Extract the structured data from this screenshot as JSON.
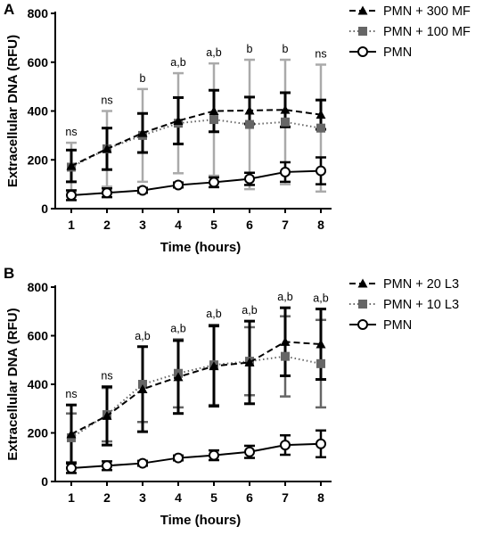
{
  "chart_data": [
    {
      "type": "line",
      "panel": "A",
      "xlabel": "Time (hours)",
      "ylabel": "Extracellular DNA  (RFU)",
      "categories": [
        "1",
        "2",
        "3",
        "4",
        "5",
        "6",
        "7",
        "8"
      ],
      "x": [
        1,
        2,
        3,
        4,
        5,
        6,
        7,
        8
      ],
      "ylim": [
        0,
        800
      ],
      "yticks": [
        "0",
        "200",
        "400",
        "600",
        "800"
      ],
      "grid": false,
      "legend_position": "right",
      "annotations": [
        "ns",
        "ns",
        "b",
        "a,b",
        "a,b",
        "b",
        "b",
        "ns"
      ],
      "series": [
        {
          "name": "PMN + 300 MF",
          "style": "dashed",
          "marker": "triangle",
          "color": "#000000",
          "values": [
            175,
            245,
            310,
            360,
            400,
            402,
            405,
            385
          ],
          "errors": [
            65,
            85,
            80,
            95,
            85,
            55,
            70,
            60
          ]
        },
        {
          "name": "PMN + 100 MF",
          "style": "dotted",
          "marker": "square",
          "color": "#666666",
          "error_color": "#aaaaaa",
          "values": [
            170,
            245,
            300,
            350,
            365,
            345,
            355,
            330
          ],
          "errors": [
            100,
            155,
            190,
            205,
            230,
            265,
            255,
            260
          ]
        },
        {
          "name": "PMN",
          "style": "solid",
          "marker": "circle-open",
          "color": "#000000",
          "values": [
            55,
            65,
            75,
            97,
            108,
            122,
            150,
            155
          ],
          "errors": [
            20,
            18,
            10,
            10,
            20,
            25,
            40,
            55
          ]
        }
      ]
    },
    {
      "type": "line",
      "panel": "B",
      "xlabel": "Time (hours)",
      "ylabel": "Extracellular DNA  (RFU)",
      "categories": [
        "1",
        "2",
        "3",
        "4",
        "5",
        "6",
        "7",
        "8"
      ],
      "x": [
        1,
        2,
        3,
        4,
        5,
        6,
        7,
        8
      ],
      "ylim": [
        0,
        800
      ],
      "yticks": [
        "0",
        "200",
        "400",
        "600",
        "800"
      ],
      "grid": false,
      "legend_position": "right",
      "annotations": [
        "ns",
        "ns",
        "a,b",
        "a,b",
        "a,b",
        "a,b",
        "a,b",
        "a,b"
      ],
      "series": [
        {
          "name": "PMN + 20 L3",
          "style": "dashed",
          "marker": "triangle",
          "color": "#000000",
          "values": [
            195,
            270,
            380,
            430,
            475,
            490,
            575,
            565
          ],
          "errors": [
            120,
            120,
            175,
            150,
            165,
            170,
            140,
            145
          ]
        },
        {
          "name": "PMN + 10 L3",
          "style": "dotted",
          "marker": "square",
          "color": "#666666",
          "error_color": "#666666",
          "values": [
            180,
            275,
            400,
            445,
            480,
            495,
            515,
            485
          ],
          "errors": [
            100,
            110,
            155,
            140,
            165,
            140,
            165,
            180
          ]
        },
        {
          "name": "PMN",
          "style": "solid",
          "marker": "circle-open",
          "color": "#000000",
          "values": [
            55,
            65,
            75,
            97,
            108,
            122,
            150,
            155
          ],
          "errors": [
            20,
            18,
            10,
            10,
            20,
            25,
            40,
            55
          ]
        }
      ]
    }
  ]
}
